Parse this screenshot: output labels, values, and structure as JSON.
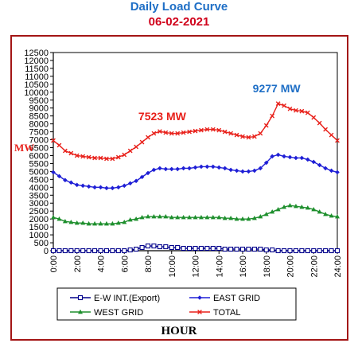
{
  "page": {
    "title": "Daily Load Curve",
    "date": "06-02-2021"
  },
  "chart_data": {
    "type": "line",
    "xlabel": "HOUR",
    "ylabel": "MW",
    "ylim": [
      0,
      12500
    ],
    "yticks": [
      0,
      500,
      1000,
      1500,
      2000,
      2500,
      3000,
      3500,
      4000,
      4500,
      5000,
      5500,
      6000,
      6500,
      7000,
      7500,
      8000,
      8500,
      9000,
      9500,
      10000,
      10500,
      11000,
      11500,
      12000,
      12500
    ],
    "ytick_labels": [
      "0",
      "500",
      "1000",
      "1500",
      "2000",
      "2500",
      "3000",
      "3500",
      "4000",
      "4500",
      "5000",
      "5500",
      "6000",
      "6500",
      "7000",
      "7500",
      "8000",
      "8500",
      "9000",
      "9500",
      "10000",
      "10500",
      "11000",
      "11500",
      "12000",
      "12500"
    ],
    "xlim": [
      0,
      24
    ],
    "xticks": [
      0,
      2,
      4,
      6,
      8,
      10,
      12,
      14,
      16,
      18,
      20,
      22,
      24
    ],
    "xtick_labels": [
      "0:00",
      "2:00",
      "4:00",
      "6:00",
      "8:00",
      "10:00",
      "12:00",
      "14:00",
      "16:00",
      "18:00",
      "20:00",
      "22:00",
      "24:00"
    ],
    "x": [
      0,
      0.5,
      1,
      1.5,
      2,
      2.5,
      3,
      3.5,
      4,
      4.5,
      5,
      5.5,
      6,
      6.5,
      7,
      7.5,
      8,
      8.5,
      9,
      9.5,
      10,
      10.5,
      11,
      11.5,
      12,
      12.5,
      13,
      13.5,
      14,
      14.5,
      15,
      15.5,
      16,
      16.5,
      17,
      17.5,
      18,
      18.5,
      19,
      19.5,
      20,
      20.5,
      21,
      21.5,
      22,
      22.5,
      23,
      23.5,
      24
    ],
    "series": [
      {
        "name": "E-W INT.(Export)",
        "color": "#00008b",
        "marker": "square-open",
        "values": [
          0,
          0,
          0,
          0,
          0,
          0,
          0,
          0,
          0,
          0,
          0,
          0,
          0,
          50,
          100,
          200,
          300,
          300,
          250,
          250,
          200,
          200,
          150,
          150,
          150,
          150,
          150,
          150,
          150,
          100,
          100,
          100,
          100,
          100,
          100,
          100,
          50,
          50,
          0,
          0,
          0,
          0,
          0,
          0,
          0,
          0,
          0,
          0,
          0
        ]
      },
      {
        "name": "EAST GRID",
        "color": "#1f1fd6",
        "marker": "diamond",
        "values": [
          4950,
          4700,
          4450,
          4300,
          4150,
          4100,
          4050,
          4000,
          4000,
          3950,
          3950,
          4000,
          4100,
          4250,
          4400,
          4650,
          4900,
          5100,
          5200,
          5150,
          5150,
          5150,
          5200,
          5200,
          5250,
          5300,
          5300,
          5300,
          5250,
          5200,
          5100,
          5050,
          5000,
          5000,
          5050,
          5200,
          5550,
          5950,
          6050,
          5950,
          5900,
          5850,
          5850,
          5750,
          5600,
          5400,
          5200,
          5050,
          4950
        ]
      },
      {
        "name": "WEST GRID",
        "color": "#1e8f2d",
        "marker": "triangle",
        "values": [
          2100,
          2000,
          1850,
          1800,
          1750,
          1750,
          1700,
          1700,
          1700,
          1700,
          1700,
          1750,
          1800,
          1950,
          2000,
          2100,
          2150,
          2150,
          2150,
          2150,
          2100,
          2100,
          2100,
          2100,
          2100,
          2100,
          2100,
          2100,
          2100,
          2050,
          2050,
          2000,
          2000,
          2000,
          2050,
          2150,
          2300,
          2450,
          2600,
          2750,
          2850,
          2800,
          2750,
          2700,
          2600,
          2450,
          2300,
          2200,
          2150
        ]
      },
      {
        "name": "TOTAL",
        "color": "#e8201a",
        "marker": "x",
        "values": [
          6950,
          6650,
          6300,
          6150,
          6000,
          5950,
          5900,
          5850,
          5850,
          5800,
          5800,
          5900,
          6050,
          6300,
          6550,
          6850,
          7150,
          7400,
          7523,
          7450,
          7400,
          7400,
          7450,
          7500,
          7550,
          7600,
          7650,
          7650,
          7600,
          7500,
          7400,
          7300,
          7200,
          7150,
          7200,
          7400,
          7900,
          8500,
          9277,
          9150,
          8950,
          8850,
          8800,
          8700,
          8400,
          8050,
          7650,
          7300,
          6950
        ]
      }
    ],
    "annotations": [
      {
        "text": "7523 MW",
        "x": 9,
        "y": 7523,
        "color": "#e8201a"
      },
      {
        "text": "9277 MW",
        "x": 19,
        "y": 9277,
        "color": "#1f6fc6"
      }
    ],
    "legend_position": "bottom"
  }
}
